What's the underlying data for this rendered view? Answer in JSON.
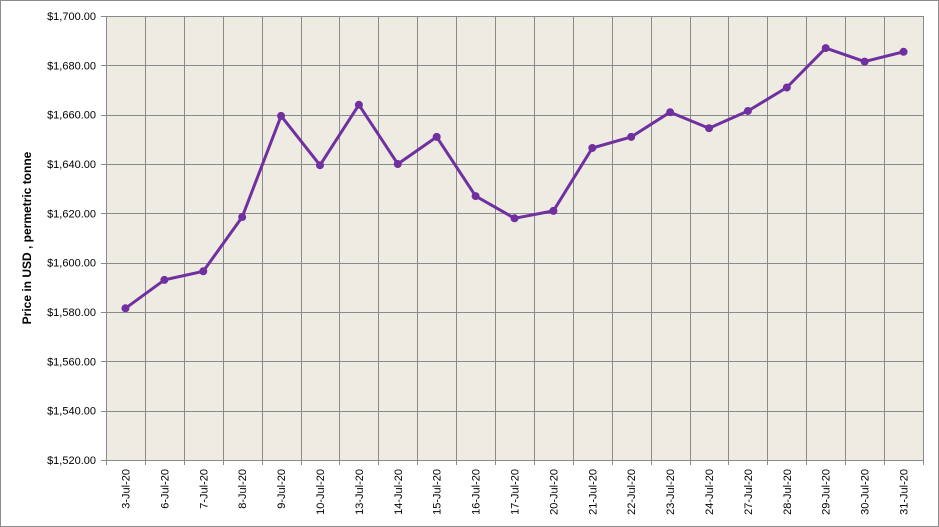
{
  "chart_data": {
    "type": "line",
    "title": "",
    "xlabel": "",
    "ylabel": "Price in USD , permetric tonne",
    "categories": [
      "3-Jul-20",
      "6-Jul-20",
      "7-Jul-20",
      "8-Jul-20",
      "9-Jul-20",
      "10-Jul-20",
      "13-Jul-20",
      "14-Jul-20",
      "15-Jul-20",
      "16-Jul-20",
      "17-Jul-20",
      "20-Jul-20",
      "21-Jul-20",
      "22-Jul-20",
      "23-Jul-20",
      "24-Jul-20",
      "27-Jul-20",
      "28-Jul-20",
      "29-Jul-20",
      "30-Jul-20",
      "31-Jul-20"
    ],
    "series": [
      {
        "values": [
          1581.5,
          1593,
          1596.5,
          1618.5,
          1659.5,
          1639.5,
          1664,
          1640,
          1651,
          1627,
          1618,
          1621,
          1646.5,
          1651,
          1661,
          1654.5,
          1661.5,
          1671,
          1687,
          1681.5,
          1685.5
        ]
      }
    ],
    "ylim": [
      1520,
      1700
    ],
    "y_step": 20,
    "y_ticks": [
      "$1,520.00",
      "$1,540.00",
      "$1,560.00",
      "$1,580.00",
      "$1,600.00",
      "$1,620.00",
      "$1,640.00",
      "$1,660.00",
      "$1,680.00",
      "$1,700.00"
    ],
    "grid": true,
    "legend": "none",
    "colors": {
      "line": "#7030a0",
      "plot_background": "#eeebe2",
      "grid": "#8a8a8a"
    }
  }
}
